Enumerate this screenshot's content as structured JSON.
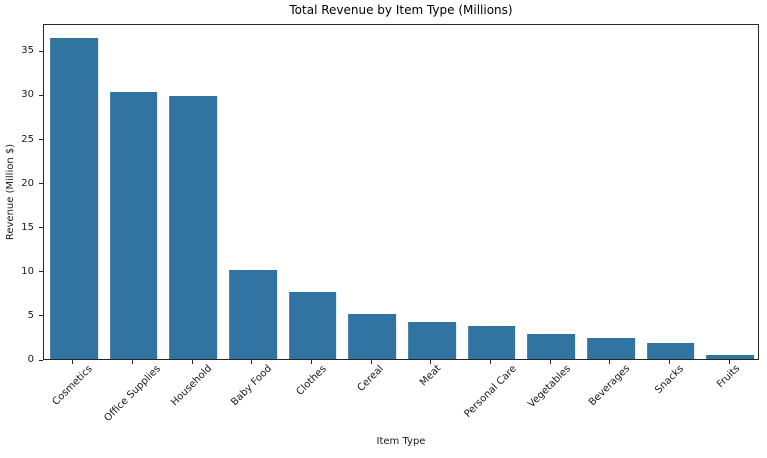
{
  "chart_data": {
    "type": "bar",
    "title": "Total Revenue by Item Type (Millions)",
    "xlabel": "Item Type",
    "ylabel": "Revenue (Million $)",
    "categories": [
      "Cosmetics",
      "Office Supplies",
      "Household",
      "Baby Food",
      "Clothes",
      "Cereal",
      "Meat",
      "Personal Care",
      "Vegetables",
      "Beverages",
      "Snacks",
      "Fruits"
    ],
    "values": [
      36.4,
      30.3,
      29.8,
      10.1,
      7.6,
      5.1,
      4.2,
      3.7,
      2.8,
      2.4,
      1.8,
      0.4
    ],
    "yticks": [
      0,
      5,
      10,
      15,
      20,
      25,
      30,
      35
    ],
    "ylim": [
      0,
      38.1
    ],
    "x_tick_rotation": 45,
    "grid": false,
    "legend": false,
    "bar_color": "#3274A1",
    "spine_color": "#262626",
    "text_color": "#1a1a1a",
    "background_color": "#ffffff"
  }
}
